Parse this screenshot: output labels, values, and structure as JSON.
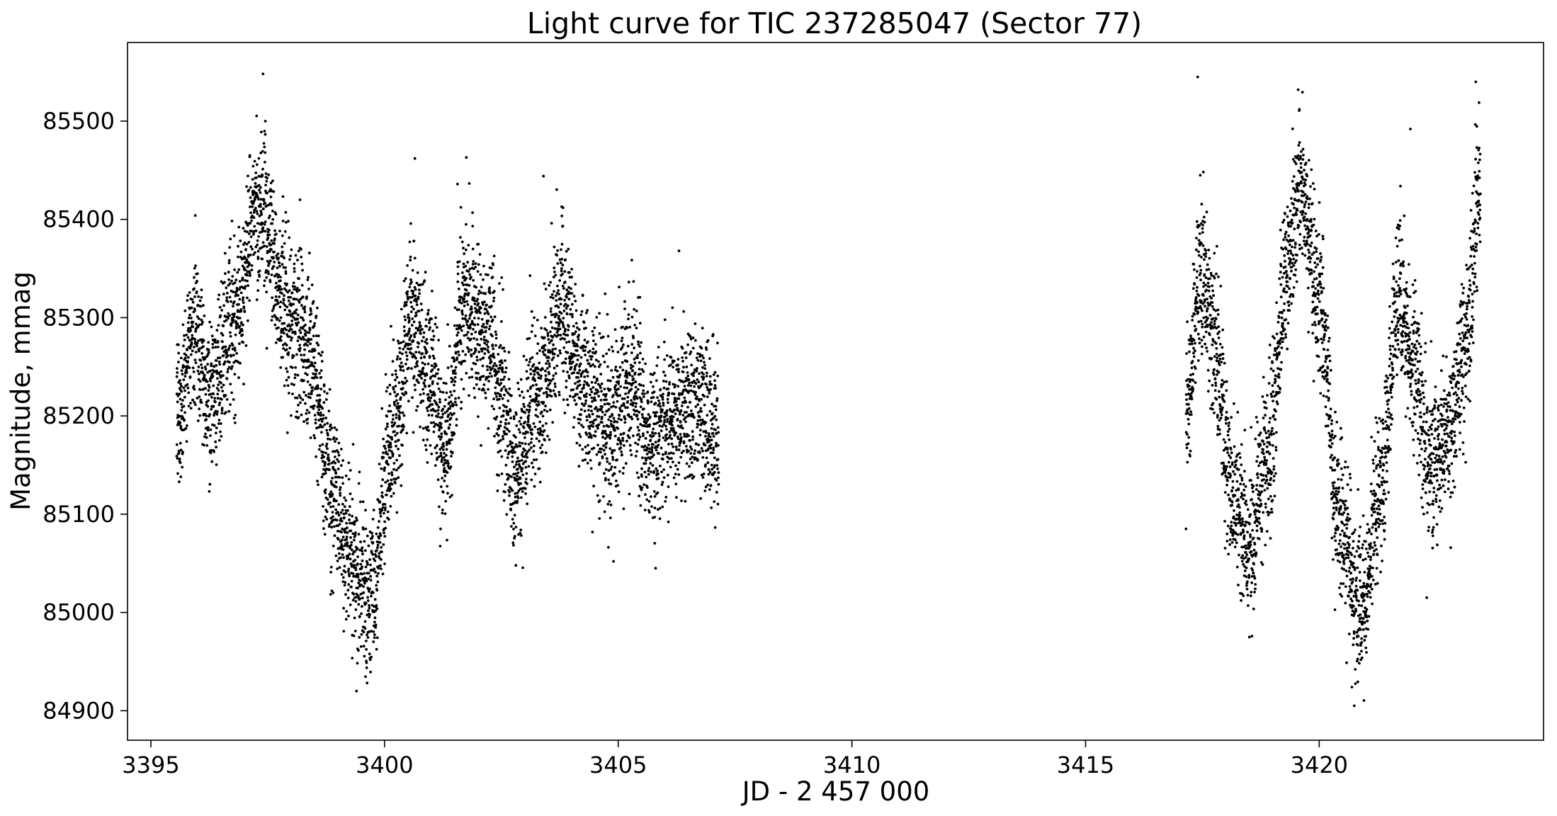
{
  "chart_data": {
    "type": "scatter",
    "title": "Light curve for TIC 237285047 (Sector 77)",
    "xlabel": "JD - 2 457 000",
    "ylabel": "Magnitude, mmag",
    "xlim": [
      3394.5,
      3424.8
    ],
    "ylim": [
      84870,
      85580
    ],
    "xticks": [
      3395,
      3400,
      3405,
      3410,
      3415,
      3420
    ],
    "yticks": [
      84900,
      85000,
      85100,
      85200,
      85300,
      85400,
      85500
    ],
    "grid": false,
    "legend": "none",
    "marker_color": "#000000",
    "segments": [
      {
        "x_start": 3395.55,
        "x_end": 3407.15
      },
      {
        "x_start": 3417.15,
        "x_end": 3423.45
      }
    ],
    "trend": {
      "x": [
        3395.55,
        3395.9,
        3396.3,
        3396.8,
        3397.3,
        3397.9,
        3398.4,
        3398.9,
        3399.3,
        3399.7,
        3400.1,
        3400.6,
        3401.0,
        3401.3,
        3401.7,
        3402.2,
        3402.5,
        3402.8,
        3403.3,
        3403.8,
        3404.3,
        3404.8,
        3405.3,
        3405.7,
        3406.2,
        3406.6,
        3407.15,
        3417.15,
        3417.45,
        3417.8,
        3418.1,
        3418.5,
        3418.9,
        3419.3,
        3419.6,
        3420.0,
        3420.4,
        3420.9,
        3421.3,
        3421.7,
        3422.0,
        3422.4,
        3422.8,
        3423.1,
        3423.45
      ],
      "y": [
        85200,
        85280,
        85220,
        85300,
        85410,
        85310,
        85260,
        85130,
        85050,
        85010,
        85160,
        85300,
        85230,
        85160,
        85320,
        85280,
        85220,
        85140,
        85220,
        85310,
        85230,
        85190,
        85230,
        85170,
        85200,
        85210,
        85170,
        85200,
        85350,
        85270,
        85130,
        85070,
        85160,
        85340,
        85430,
        85320,
        85110,
        85000,
        85120,
        85320,
        85260,
        85150,
        85180,
        85260,
        85430
      ]
    },
    "scatter_mmag": 40,
    "outliers": [
      {
        "x": 3397.4,
        "y": 85548
      },
      {
        "x": 3397.45,
        "y": 85500
      },
      {
        "x": 3399.4,
        "y": 84920
      },
      {
        "x": 3400.65,
        "y": 85462
      },
      {
        "x": 3401.75,
        "y": 85463
      },
      {
        "x": 3403.4,
        "y": 85444
      },
      {
        "x": 3395.95,
        "y": 85404
      },
      {
        "x": 3404.9,
        "y": 85052
      },
      {
        "x": 3405.8,
        "y": 85045
      },
      {
        "x": 3406.3,
        "y": 85368
      },
      {
        "x": 3417.15,
        "y": 85085
      },
      {
        "x": 3417.4,
        "y": 85545
      },
      {
        "x": 3419.55,
        "y": 85532
      },
      {
        "x": 3420.75,
        "y": 84905
      },
      {
        "x": 3421.95,
        "y": 85492
      },
      {
        "x": 3422.3,
        "y": 85015
      },
      {
        "x": 3423.35,
        "y": 85540
      },
      {
        "x": 3398.9,
        "y": 85020
      },
      {
        "x": 3401.2,
        "y": 85085
      }
    ]
  }
}
